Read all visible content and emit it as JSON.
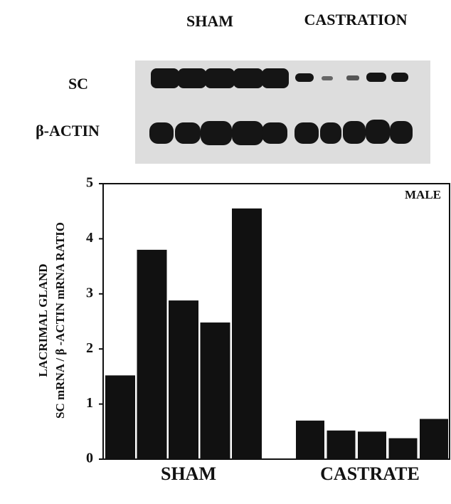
{
  "blot": {
    "columns": [
      "SHAM",
      "CASTRATION"
    ],
    "rows": [
      "SC",
      "β-ACTIN"
    ]
  },
  "chart_data": {
    "type": "bar",
    "ylabel": [
      "LACRIMAL GLAND",
      "SC mRNA / β -ACTIN mRNA RATIO"
    ],
    "annotation": "MALE",
    "series": [
      {
        "name": "SHAM",
        "color": "#111111",
        "values": [
          1.52,
          3.8,
          2.88,
          2.48,
          4.55
        ]
      },
      {
        "name": "CASTRATE",
        "color": "#111111",
        "values": [
          0.7,
          0.52,
          0.5,
          0.38,
          0.73
        ]
      }
    ],
    "ylim": [
      0,
      5
    ],
    "yticks": [
      0,
      1,
      2,
      3,
      4,
      5
    ]
  }
}
